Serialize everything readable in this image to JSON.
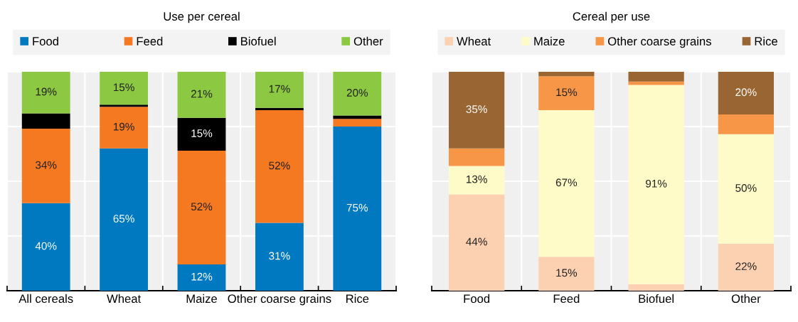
{
  "chart_data": [
    {
      "type": "bar",
      "title": "Use per cereal",
      "stacked": true,
      "categories": [
        "All cereals",
        "Wheat",
        "Maize",
        "Other coarse grains",
        "Rice"
      ],
      "ylim": [
        0,
        100
      ],
      "yticks": [
        {
          "value": 0,
          "label": null
        },
        {
          "value": 25,
          "label": null
        },
        {
          "value": 50,
          "label": null
        },
        {
          "value": 75,
          "label": null
        },
        {
          "value": 100,
          "label": null
        }
      ],
      "tick_labels": "x",
      "grid": true,
      "legend": "top",
      "series": [
        {
          "name": "Food",
          "color": "#0079c1",
          "values": [
            40,
            65,
            12,
            31,
            75
          ],
          "value_labels": [
            "40%",
            "65%",
            "12%",
            "31%",
            "75%"
          ]
        },
        {
          "name": "Feed",
          "color": "#f47920",
          "values": [
            34,
            19,
            52,
            51.5,
            3.5
          ],
          "value_labels": [
            "34%",
            "19%",
            "52%",
            "52%",
            null
          ]
        },
        {
          "name": "Biofuel",
          "color": "#000000",
          "values": [
            7,
            1,
            15,
            1,
            1.5
          ],
          "value_labels": [
            null,
            null,
            "15%",
            null,
            null
          ]
        },
        {
          "name": "Other",
          "color": "#8cc841",
          "values": [
            19,
            15,
            21,
            16.5,
            20
          ],
          "value_labels": [
            "19%",
            "15%",
            "21%",
            "17%",
            "20%"
          ]
        }
      ]
    },
    {
      "type": "bar",
      "title": "Cereal per use",
      "stacked": true,
      "categories": [
        "Food",
        "Feed",
        "Biofuel",
        "Other"
      ],
      "ylim": [
        0,
        100
      ],
      "yticks": [
        {
          "value": 0,
          "label": null
        },
        {
          "value": 25,
          "label": null
        },
        {
          "value": 50,
          "label": null
        },
        {
          "value": 75,
          "label": null
        },
        {
          "value": 100,
          "label": null
        }
      ],
      "tick_labels": "x",
      "grid": true,
      "legend": "top",
      "series": [
        {
          "name": "Wheat",
          "color": "#fbd1b1",
          "values": [
            44,
            15.5,
            3,
            21.5
          ],
          "value_labels": [
            "44%",
            "15%",
            null,
            "22%"
          ]
        },
        {
          "name": "Maize",
          "color": "#fffbc8",
          "values": [
            13,
            67,
            91,
            50
          ],
          "value_labels": [
            "13%",
            "67%",
            "91%",
            "50%"
          ]
        },
        {
          "name": "Other coarse grains",
          "color": "#f79646",
          "values": [
            8,
            15.5,
            1.5,
            9
          ],
          "value_labels": [
            null,
            "15%",
            null,
            null
          ]
        },
        {
          "name": "Rice",
          "color": "#996633",
          "values": [
            35,
            2,
            4.5,
            19.5
          ],
          "value_labels": [
            "35%",
            null,
            null,
            "20%"
          ]
        }
      ]
    }
  ]
}
